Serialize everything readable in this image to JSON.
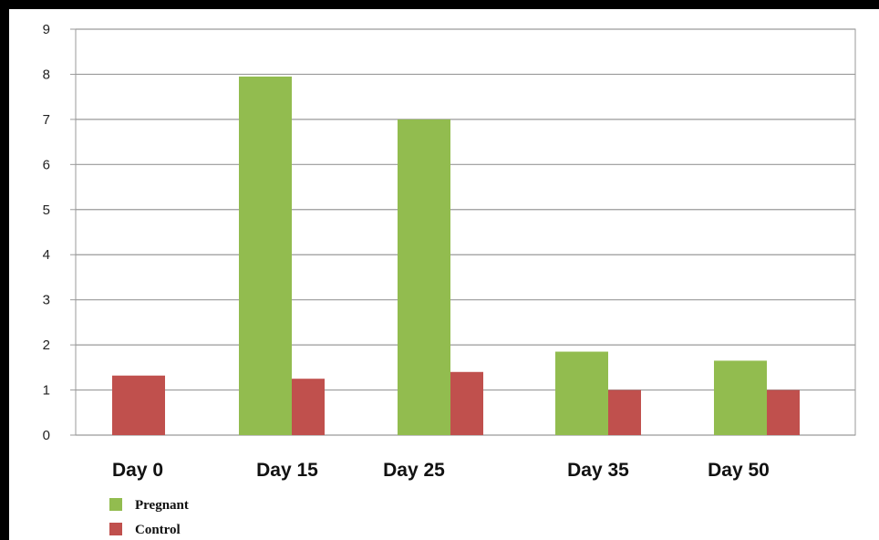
{
  "chart_data": {
    "type": "bar",
    "title": "",
    "xlabel": "",
    "ylabel": "",
    "ylim": [
      0,
      9
    ],
    "yticks": [
      "0",
      "1",
      "2",
      "3",
      "4",
      "5",
      "6",
      "7",
      "8",
      "9"
    ],
    "grid": true,
    "legend": "bottom-left",
    "categories": [
      "Day 0",
      "Day 15",
      "Day 25",
      "Day 35",
      "Day 50"
    ],
    "series": [
      {
        "name": "Pregnant",
        "color": "#92bc4f",
        "values": [
          0,
          7.95,
          7.0,
          1.85,
          1.65
        ]
      },
      {
        "name": "Control",
        "color": "#c0504d",
        "values": [
          1.32,
          1.25,
          1.4,
          1.0,
          1.0
        ]
      }
    ]
  }
}
